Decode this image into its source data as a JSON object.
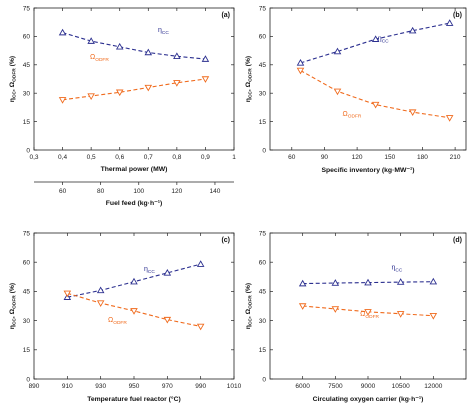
{
  "y_axis_label": {
    "main": "η",
    "sub1": "CC",
    "sep": ", Ω",
    "sub2": "ODFR",
    "unit": " (%)"
  },
  "annotation_cc": {
    "main": "η",
    "sub": "CC"
  },
  "annotation_odfr": {
    "main": "Ω",
    "sub": "ODFR"
  },
  "colors": {
    "cc": "#2b2f8f",
    "odfr": "#f06a1c",
    "axis": "#222222"
  },
  "chart_data": [
    {
      "type": "line",
      "panel_label": "(a)",
      "xlabel": "Thermal power (MW)",
      "ylabel": "ηCC, ΩODFR (%)",
      "xlim": [
        0.3,
        1.0
      ],
      "ylim": [
        0,
        75
      ],
      "x_ticks": [
        "0,3",
        "0,4",
        "0,5",
        "0,6",
        "0,7",
        "0,8",
        "0,9",
        "1"
      ],
      "x_tick_values": [
        0.3,
        0.4,
        0.5,
        0.6,
        0.7,
        0.8,
        0.9,
        1.0
      ],
      "y_ticks": [
        "0",
        "15",
        "30",
        "45",
        "60",
        "75"
      ],
      "y_tick_values": [
        0,
        15,
        30,
        45,
        60,
        75
      ],
      "secondary_x": {
        "xlabel": "Fuel feed (kg·h⁻¹)",
        "x_ticks": [
          "60",
          "80",
          "100",
          "120",
          "140"
        ],
        "x_tick_values": [
          60,
          80,
          100,
          120,
          140
        ],
        "xlim": [
          45,
          150
        ]
      },
      "series": [
        {
          "name": "ηCC",
          "marker": "triangle-up",
          "x": [
            0.4,
            0.5,
            0.6,
            0.7,
            0.8,
            0.9
          ],
          "y": [
            62,
            57.5,
            54.5,
            51.5,
            49.5,
            48
          ]
        },
        {
          "name": "ΩODFR",
          "marker": "triangle-down",
          "x": [
            0.4,
            0.5,
            0.6,
            0.7,
            0.8,
            0.9
          ],
          "y": [
            26.5,
            28.5,
            30.5,
            33,
            35.5,
            37.5
          ]
        }
      ]
    },
    {
      "type": "line",
      "panel_label": "(b)",
      "xlabel": "Specific inventory (kg·MW⁻¹)",
      "ylabel": "",
      "xlim": [
        40,
        220
      ],
      "ylim": [
        0,
        75
      ],
      "x_ticks": [
        "60",
        "90",
        "120",
        "150",
        "180",
        "210"
      ],
      "x_tick_values": [
        60,
        90,
        120,
        150,
        180,
        210
      ],
      "y_ticks": [
        "0",
        "15",
        "30",
        "45",
        "60",
        "75"
      ],
      "y_tick_values": [
        0,
        15,
        30,
        45,
        60,
        75
      ],
      "series": [
        {
          "name": "ηCC",
          "marker": "triangle-up",
          "x": [
            68,
            102,
            137,
            171,
            205
          ],
          "y": [
            46,
            52,
            58.5,
            63,
            67
          ]
        },
        {
          "name": "ΩODFR",
          "marker": "triangle-down",
          "x": [
            68,
            102,
            137,
            171,
            205
          ],
          "y": [
            42,
            31,
            24,
            20,
            17
          ]
        }
      ]
    },
    {
      "type": "line",
      "panel_label": "(c)",
      "xlabel": "Temperature fuel reactor (°C)",
      "ylabel": "ηCC, ΩODFR (%)",
      "xlim": [
        890,
        1010
      ],
      "ylim": [
        0,
        75
      ],
      "x_ticks": [
        "890",
        "910",
        "930",
        "950",
        "970",
        "990",
        "1010"
      ],
      "x_tick_values": [
        890,
        910,
        930,
        950,
        970,
        990,
        1010
      ],
      "y_ticks": [
        "0",
        "15",
        "30",
        "45",
        "60",
        "75"
      ],
      "y_tick_values": [
        0,
        15,
        30,
        45,
        60,
        75
      ],
      "series": [
        {
          "name": "ηCC",
          "marker": "triangle-up",
          "x": [
            910,
            930,
            950,
            970,
            990
          ],
          "y": [
            42,
            45.5,
            50,
            54.5,
            59
          ]
        },
        {
          "name": "ΩODFR",
          "marker": "triangle-down",
          "x": [
            910,
            930,
            950,
            970,
            990
          ],
          "y": [
            44,
            39,
            35,
            30.5,
            27
          ]
        }
      ]
    },
    {
      "type": "line",
      "panel_label": "(d)",
      "xlabel": "Circulating oxygen carrier (kg·h⁻¹)",
      "ylabel": "",
      "xlim": [
        4500,
        13500
      ],
      "ylim": [
        0,
        75
      ],
      "x_ticks": [
        "6000",
        "7500",
        "9000",
        "10500",
        "12000"
      ],
      "x_tick_values": [
        6000,
        7500,
        9000,
        10500,
        12000
      ],
      "y_ticks": [
        "0",
        "15",
        "30",
        "45",
        "60",
        "75"
      ],
      "y_tick_values": [
        0,
        15,
        30,
        45,
        60,
        75
      ],
      "series": [
        {
          "name": "ηCC",
          "marker": "triangle-up",
          "x": [
            6000,
            7500,
            9000,
            10500,
            12000
          ],
          "y": [
            49,
            49.3,
            49.5,
            49.8,
            50
          ]
        },
        {
          "name": "ΩODFR",
          "marker": "triangle-down",
          "x": [
            6000,
            7500,
            9000,
            10500,
            12000
          ],
          "y": [
            37.5,
            36,
            34.5,
            33.5,
            32.5
          ]
        }
      ]
    }
  ]
}
